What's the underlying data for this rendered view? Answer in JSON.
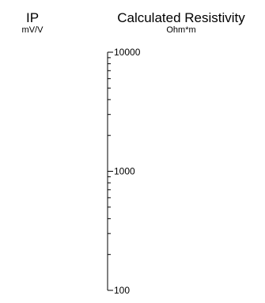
{
  "columns": [
    {
      "title": "IP",
      "unit": "mV/V"
    },
    {
      "title": "Calculated Resistivity",
      "unit": "Ohm*m"
    }
  ],
  "chart_data": {
    "type": "table",
    "axis": {
      "scale": "log",
      "range": [
        100,
        10000
      ],
      "ticks": [
        "10000",
        "1000",
        "100"
      ],
      "minor_ticks": true
    },
    "series": []
  },
  "colors": {
    "axis": "#000000",
    "background": "#ffffff"
  }
}
